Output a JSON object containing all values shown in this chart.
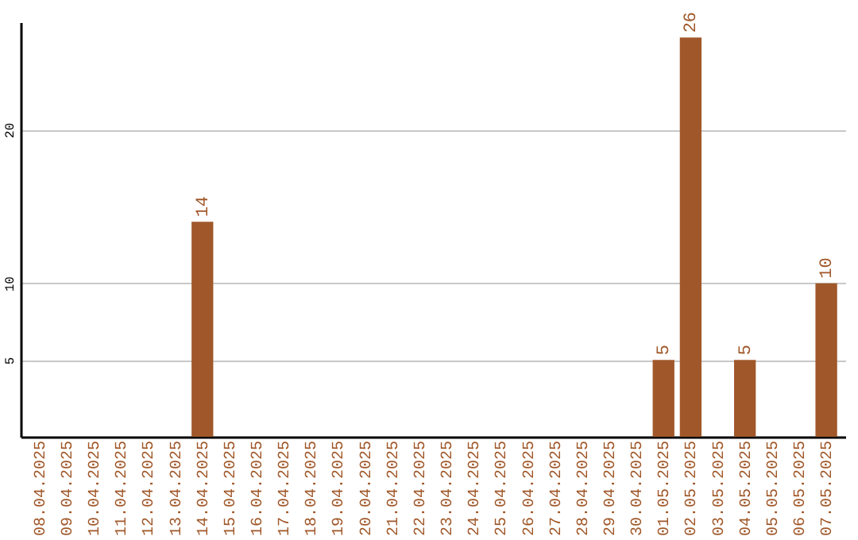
{
  "chart_data": {
    "type": "bar",
    "categories": [
      "08.04.2025",
      "09.04.2025",
      "10.04.2025",
      "11.04.2025",
      "12.04.2025",
      "13.04.2025",
      "14.04.2025",
      "15.04.2025",
      "16.04.2025",
      "17.04.2025",
      "18.04.2025",
      "19.04.2025",
      "20.04.2025",
      "21.04.2025",
      "22.04.2025",
      "23.04.2025",
      "24.04.2025",
      "25.04.2025",
      "26.04.2025",
      "27.04.2025",
      "28.04.2025",
      "29.04.2025",
      "30.04.2025",
      "01.05.2025",
      "02.05.2025",
      "03.05.2025",
      "04.05.2025",
      "05.05.2025",
      "06.05.2025",
      "07.05.2025"
    ],
    "values": [
      0,
      0,
      0,
      0,
      0,
      0,
      14,
      0,
      0,
      0,
      0,
      0,
      0,
      0,
      0,
      0,
      0,
      0,
      0,
      0,
      0,
      0,
      0,
      5,
      26,
      0,
      5,
      0,
      0,
      10
    ],
    "value_labels": [
      null,
      null,
      null,
      null,
      null,
      null,
      "14",
      null,
      null,
      null,
      null,
      null,
      null,
      null,
      null,
      null,
      null,
      null,
      null,
      null,
      null,
      null,
      null,
      "5",
      "26",
      null,
      "5",
      null,
      null,
      "10"
    ],
    "color": "#a0582a",
    "ylim": [
      0,
      27
    ],
    "yticks": [
      5,
      10,
      20
    ],
    "grid": "y"
  }
}
